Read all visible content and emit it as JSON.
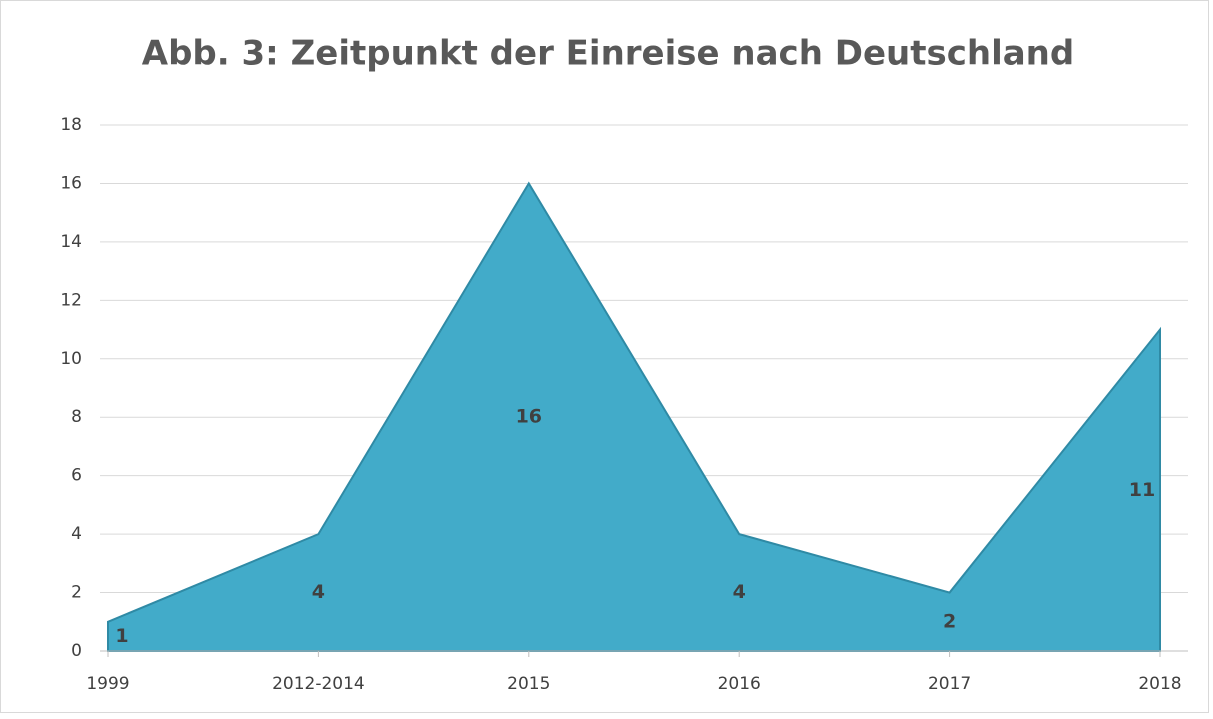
{
  "chart_data": {
    "type": "area",
    "title": "Abb. 3: Zeitpunkt der Einreise nach Deutschland",
    "categories": [
      "1999",
      "2012-2014",
      "2015",
      "2016",
      "2017",
      "2018"
    ],
    "values": [
      1,
      4,
      16,
      4,
      2,
      11
    ],
    "color": "#42abc9",
    "ylim": [
      0,
      18
    ],
    "yticks": [
      0,
      2,
      4,
      6,
      8,
      10,
      12,
      14,
      16,
      18
    ],
    "grid": true
  }
}
